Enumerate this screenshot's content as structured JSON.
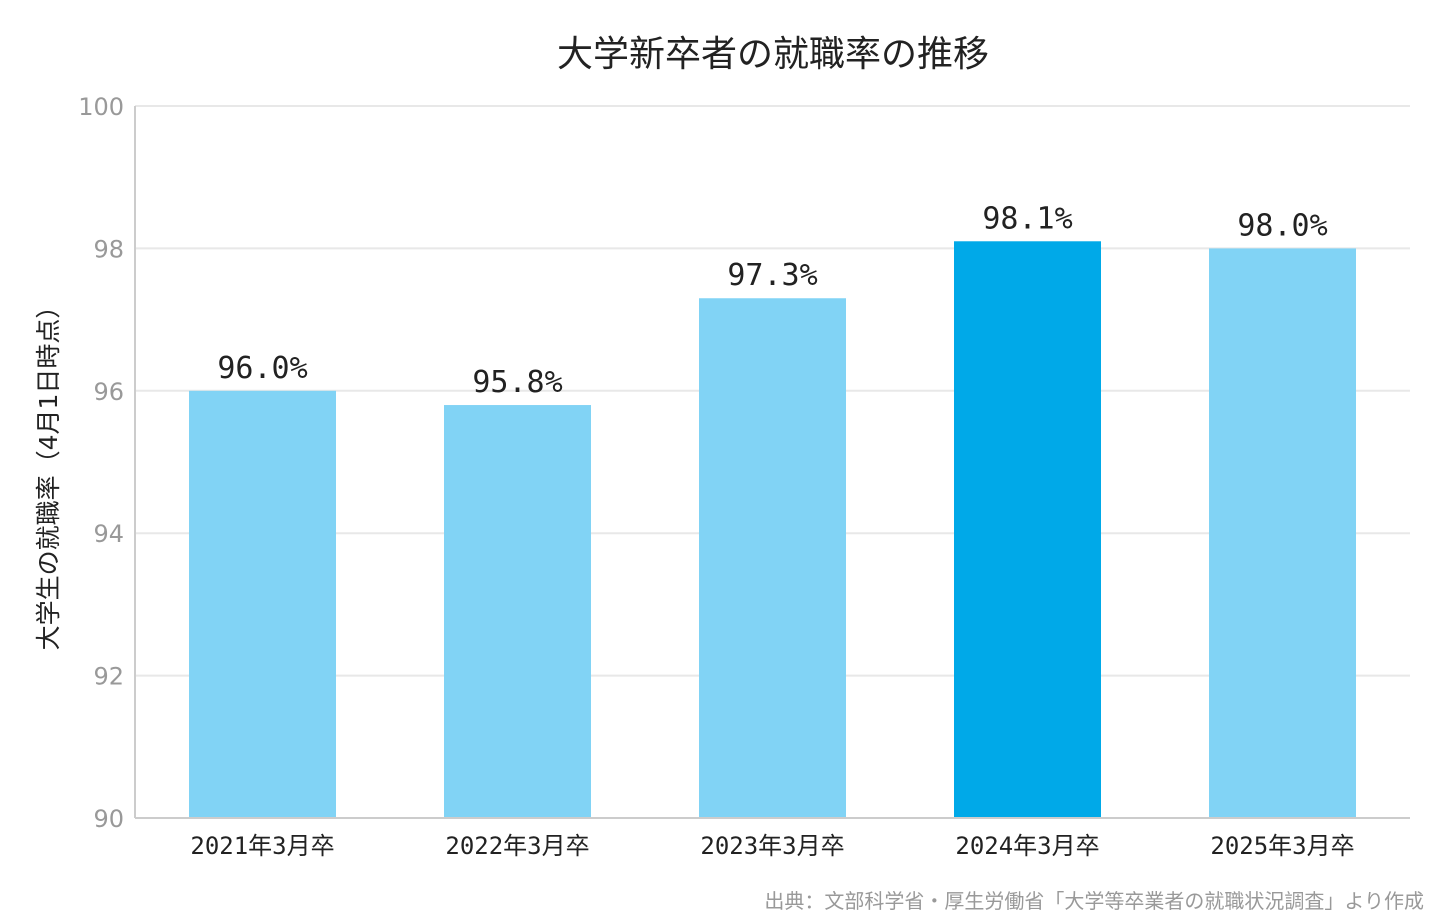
{
  "chart_data": {
    "type": "bar",
    "title": "大学新卒者の就職率の推移",
    "ylabel": "大学生の就職率（4月1日時点）",
    "xlabel": "",
    "categories": [
      "2021年3月卒",
      "2022年3月卒",
      "2023年3月卒",
      "2024年3月卒",
      "2025年3月卒"
    ],
    "values": [
      96.0,
      95.8,
      97.3,
      98.1,
      98.0
    ],
    "data_labels": [
      "96.0%",
      "95.8%",
      "97.3%",
      "98.1%",
      "98.0%"
    ],
    "highlight_index": 3,
    "ylim": [
      90,
      100
    ],
    "yticks": [
      90,
      92,
      94,
      96,
      98,
      100
    ],
    "grid": true,
    "legend": "none",
    "colors": {
      "bar": "#81D3F5",
      "highlight": "#00A9E8",
      "grid": "#E8E8E8",
      "axis": "#CCCCCC"
    }
  },
  "source_note": "出典：文部科学省・厚生労働省「大学等卒業者の就職状況調査」より作成"
}
